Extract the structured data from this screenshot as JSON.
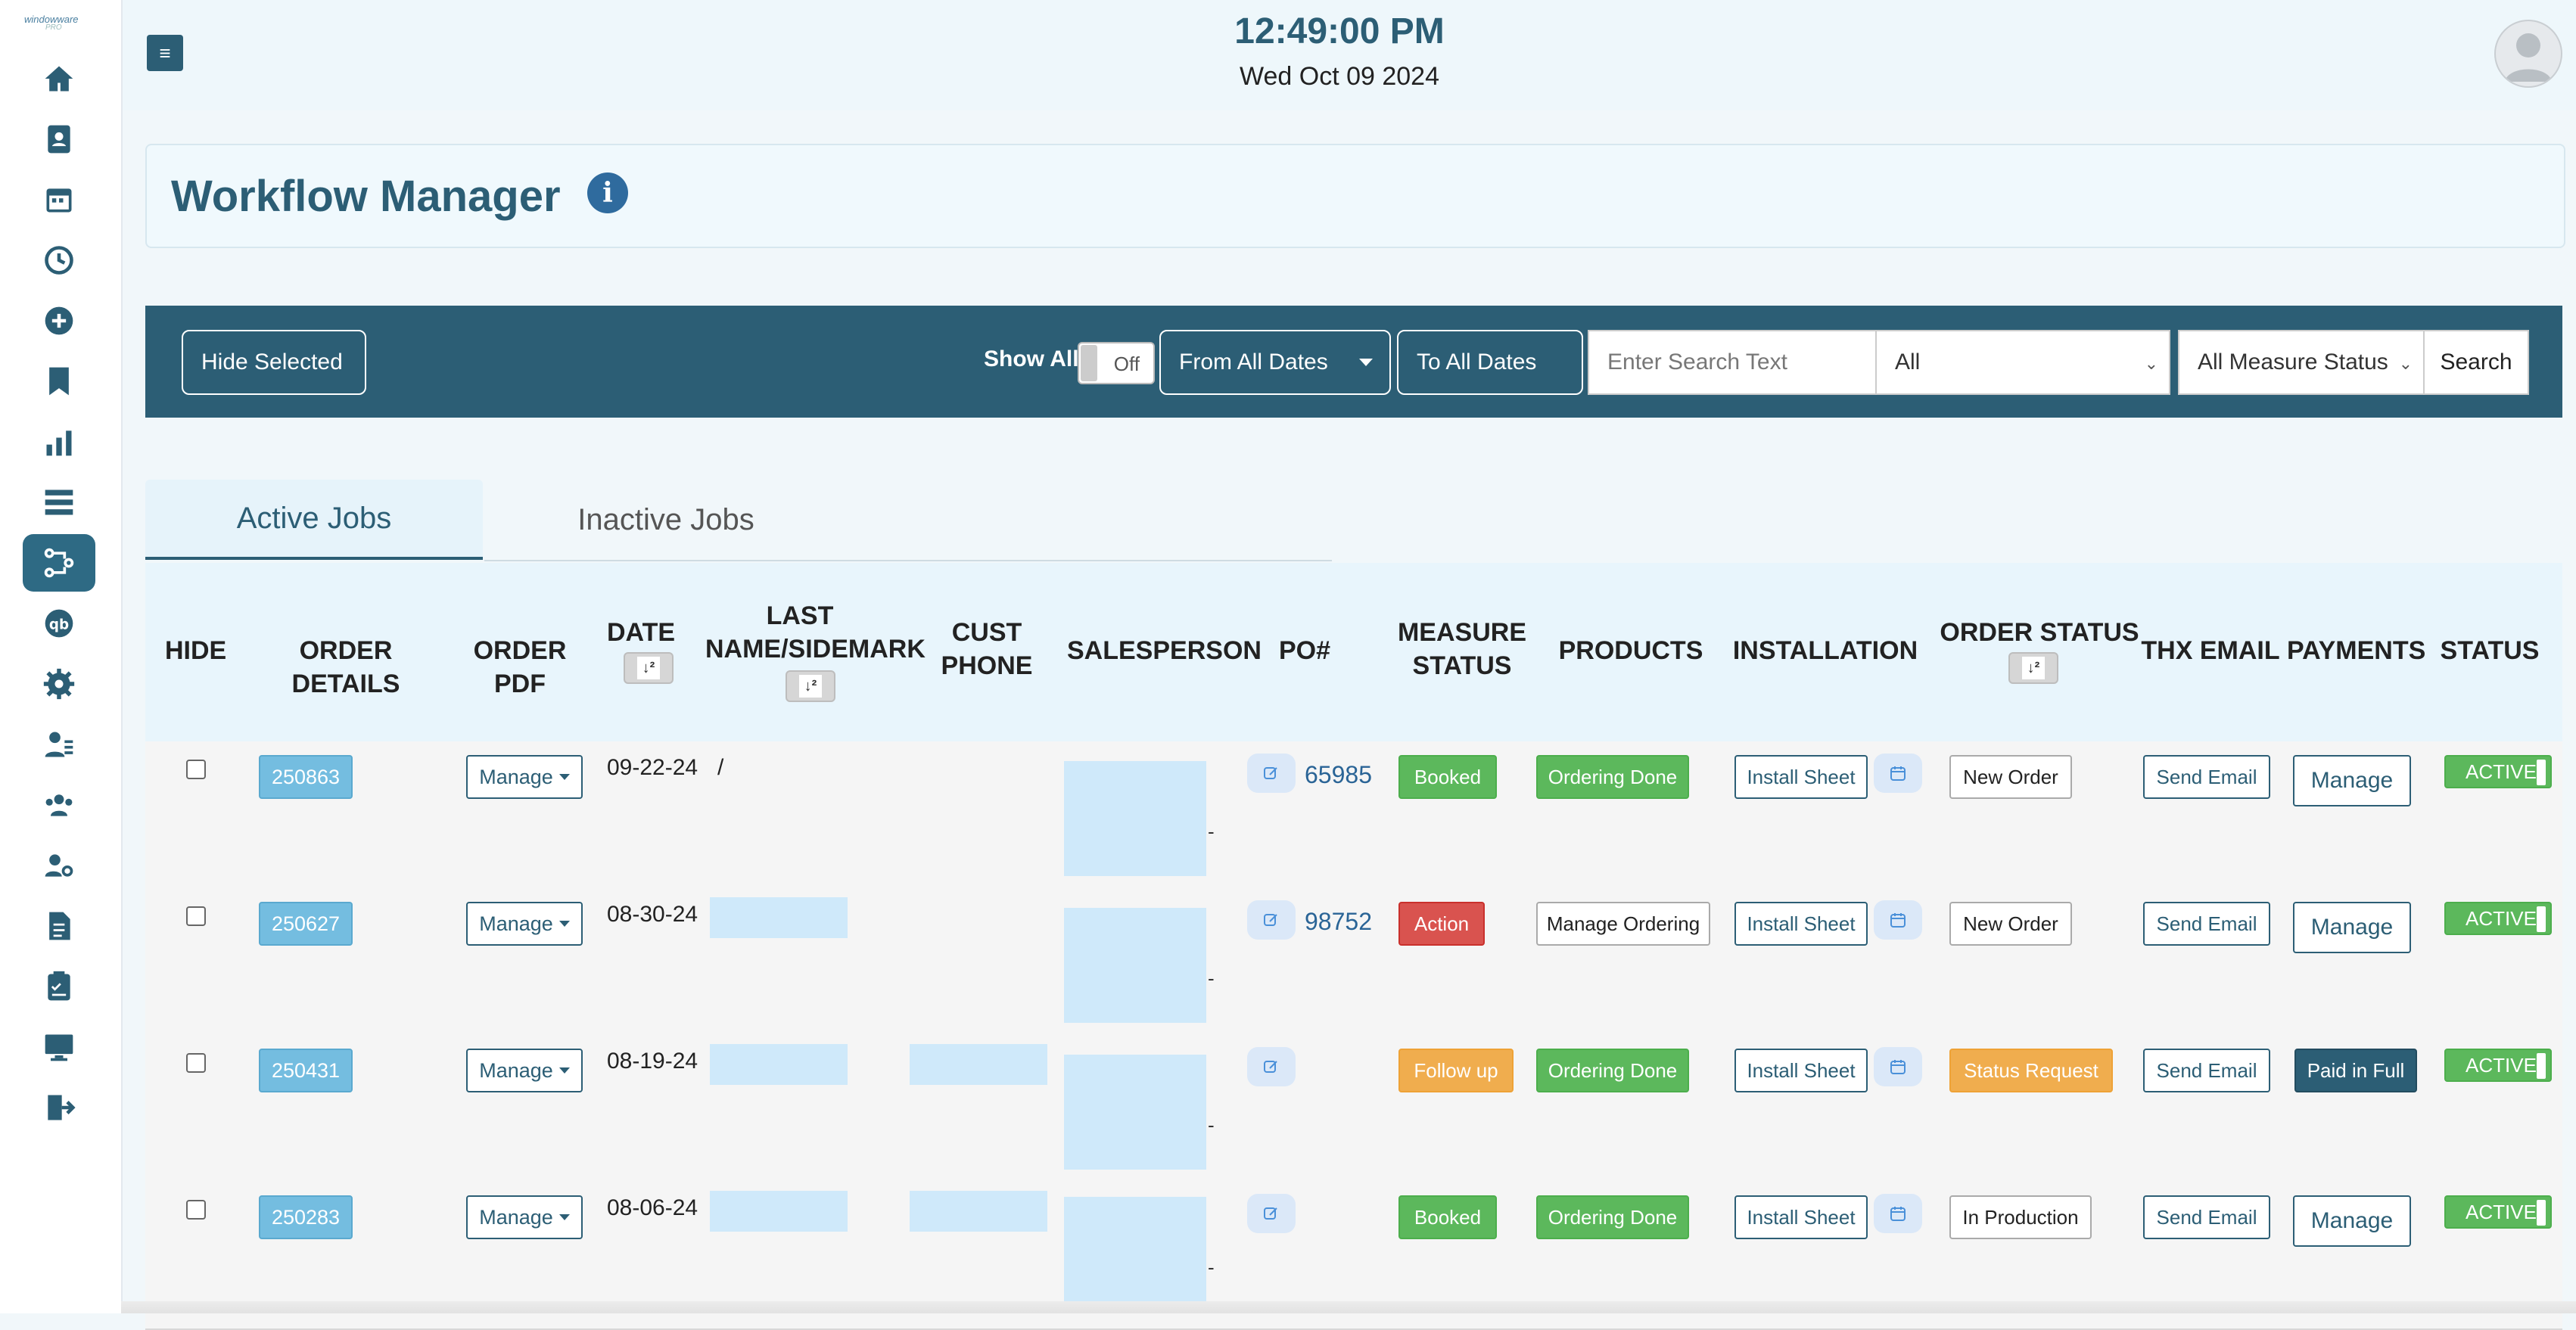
{
  "brand": {
    "logo_line1": "windowware",
    "logo_line2": "PRO"
  },
  "sidebar": {
    "items": [
      {
        "icon": "home-icon"
      },
      {
        "icon": "contacts-icon"
      },
      {
        "icon": "calendar-icon"
      },
      {
        "icon": "clock-icon"
      },
      {
        "icon": "add-circle-icon"
      },
      {
        "icon": "bookmark-icon"
      },
      {
        "icon": "bar-chart-icon"
      },
      {
        "icon": "list-icon"
      },
      {
        "icon": "workflow-icon",
        "active": true
      },
      {
        "icon": "quickbooks-icon"
      },
      {
        "icon": "gear-icon"
      },
      {
        "icon": "user-list-icon"
      },
      {
        "icon": "team-icon"
      },
      {
        "icon": "user-settings-icon"
      },
      {
        "icon": "document-icon"
      },
      {
        "icon": "clipboard-icon"
      },
      {
        "icon": "monitor-icon"
      },
      {
        "icon": "logout-icon"
      }
    ]
  },
  "header": {
    "time": "12:49:00 PM",
    "date": "Wed Oct 09 2024",
    "menu_glyph": "≡"
  },
  "page": {
    "title": "Workflow Manager",
    "info_glyph": "i"
  },
  "filters": {
    "hide_selected": "Hide Selected",
    "show_all_label": "Show All",
    "show_all_toggle": "Off",
    "from_dates": "From All Dates",
    "to_dates": "To All Dates",
    "search_placeholder": "Enter Search Text",
    "status_select": "All",
    "measure_select": "All Measure Status",
    "search_button": "Search"
  },
  "tabs": [
    {
      "label": "Active Jobs",
      "active": true
    },
    {
      "label": "Inactive Jobs",
      "active": false
    }
  ],
  "table": {
    "headers": {
      "hide": "HIDE",
      "order_details": "ORDER DETAILS",
      "order_pdf": "ORDER PDF",
      "date": "DATE",
      "last_name_1": "LAST",
      "last_name_2": "NAME/SIDEMARK",
      "cust_phone": "CUST PHONE",
      "salesperson": "SALESPERSON",
      "po": "PO#",
      "measure_1": "MEASURE",
      "measure_2": "STATUS",
      "products": "PRODUCTS",
      "installation": "INSTALLATION",
      "order_status": "ORDER STATUS",
      "thx_email": "THX EMAIL",
      "payments": "PAYMENTS",
      "status": "STATUS"
    },
    "sort_glyph": "↓²",
    "rows": [
      {
        "order": "250863",
        "pdf": "Manage",
        "date": "09-22-24",
        "last_name": "/",
        "po": "65985",
        "measure": "Booked",
        "products": "Ordering Done",
        "install": "Install Sheet",
        "order_status": "New Order",
        "email": "Send Email",
        "payments": "Manage",
        "status": "ACTIVE",
        "dash": "-"
      },
      {
        "order": "250627",
        "pdf": "Manage",
        "date": "08-30-24",
        "last_name": "",
        "po": "98752",
        "measure": "Action",
        "products": "Manage Ordering",
        "install": "Install Sheet",
        "order_status": "New Order",
        "email": "Send Email",
        "payments": "Manage",
        "status": "ACTIVE",
        "dash": "-"
      },
      {
        "order": "250431",
        "pdf": "Manage",
        "date": "08-19-24",
        "last_name": "",
        "po": "",
        "measure": "Follow up",
        "products": "Ordering Done",
        "install": "Install Sheet",
        "order_status": "Status Request",
        "email": "Send Email",
        "payments": "Paid in Full",
        "status": "ACTIVE",
        "dash": "-"
      },
      {
        "order": "250283",
        "pdf": "Manage",
        "date": "08-06-24",
        "last_name": "",
        "po": "",
        "measure": "Booked",
        "products": "Ordering Done",
        "install": "Install Sheet",
        "order_status": "In Production",
        "email": "Send Email",
        "payments": "Manage",
        "status": "ACTIVE",
        "dash": "-"
      }
    ]
  },
  "colors": {
    "primary": "#2c5e75",
    "order_button": "#74bde0",
    "success": "#5cb85c",
    "danger": "#d9534f",
    "warning": "#f0ad4e"
  }
}
